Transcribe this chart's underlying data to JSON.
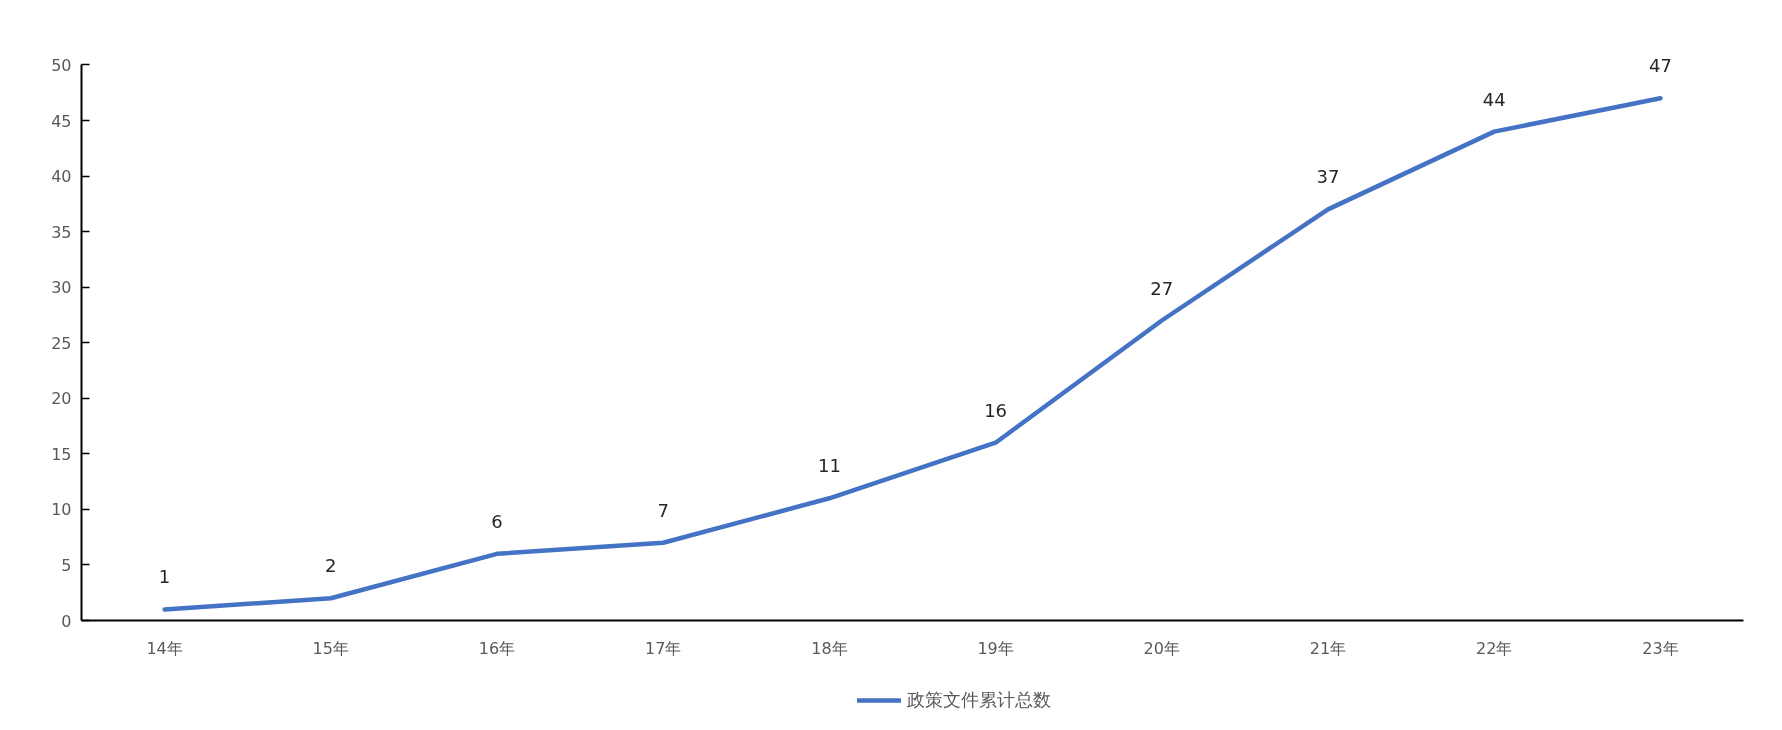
{
  "chart_data": {
    "type": "line",
    "categories": [
      "14年",
      "15年",
      "16年",
      "17年",
      "18年",
      "19年",
      "20年",
      "21年",
      "22年",
      "23年"
    ],
    "series": [
      {
        "name": "政策文件累计总数",
        "color": "#4472c4",
        "values": [
          1,
          2,
          6,
          7,
          11,
          16,
          27,
          37,
          44,
          47
        ]
      }
    ],
    "ylim": [
      0,
      50
    ],
    "yticks": [
      0,
      5,
      10,
      15,
      20,
      25,
      30,
      35,
      40,
      45,
      50
    ],
    "grid": false,
    "legend": "bottom",
    "data_labels": true
  }
}
